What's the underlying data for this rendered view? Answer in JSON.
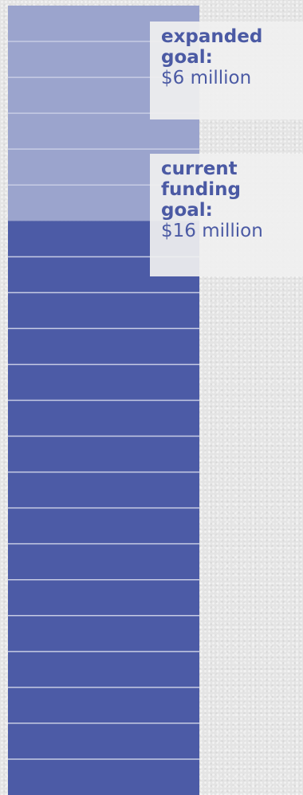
{
  "colors": {
    "current_fill": "#4c5ba6",
    "expanded_fill": "#9ba4cd",
    "divider": "#c7cce4",
    "label_text": "#4b5aa4",
    "callout_bg": "#f0f0f0"
  },
  "callouts": {
    "expanded": {
      "label": "expanded goal:",
      "amount": "$6 million"
    },
    "current": {
      "label": "current funding goal:",
      "amount": "$16 million"
    }
  },
  "chart_data": {
    "type": "bar",
    "orientation": "vertical-stacked",
    "unit": "million dollars",
    "series": [
      {
        "name": "current funding goal",
        "value": 16
      },
      {
        "name": "expanded goal",
        "value": 6
      }
    ],
    "total": 22,
    "increment": 1,
    "grid": true
  }
}
